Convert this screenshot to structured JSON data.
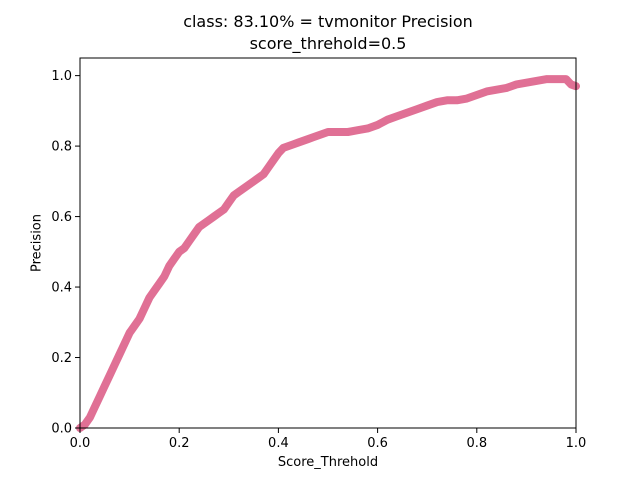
{
  "chart_data": {
    "type": "line",
    "title": "class: 83.10% = tvmonitor Precision",
    "subtitle": "score_threhold=0.5",
    "xlabel": "Score_Threhold",
    "ylabel": "Precision",
    "xlim": [
      0.0,
      1.0
    ],
    "ylim": [
      0.0,
      1.05
    ],
    "xticks": [
      "0.0",
      "0.2",
      "0.4",
      "0.6",
      "0.8",
      "1.0"
    ],
    "yticks": [
      "0.0",
      "0.2",
      "0.4",
      "0.6",
      "0.8",
      "1.0"
    ],
    "grid": false,
    "series": [
      {
        "color": "#e07095",
        "x": [
          0.0,
          0.01,
          0.02,
          0.03,
          0.04,
          0.05,
          0.06,
          0.07,
          0.08,
          0.09,
          0.1,
          0.11,
          0.12,
          0.13,
          0.14,
          0.15,
          0.16,
          0.17,
          0.18,
          0.19,
          0.2,
          0.21,
          0.22,
          0.23,
          0.24,
          0.25,
          0.26,
          0.27,
          0.28,
          0.29,
          0.3,
          0.31,
          0.32,
          0.33,
          0.34,
          0.35,
          0.36,
          0.37,
          0.38,
          0.39,
          0.4,
          0.41,
          0.42,
          0.43,
          0.44,
          0.45,
          0.46,
          0.47,
          0.48,
          0.49,
          0.5,
          0.52,
          0.54,
          0.56,
          0.58,
          0.6,
          0.62,
          0.64,
          0.66,
          0.68,
          0.7,
          0.72,
          0.74,
          0.76,
          0.78,
          0.8,
          0.82,
          0.84,
          0.86,
          0.88,
          0.9,
          0.92,
          0.94,
          0.96,
          0.98,
          0.99,
          1.0
        ],
        "y": [
          0.0,
          0.01,
          0.03,
          0.06,
          0.09,
          0.12,
          0.15,
          0.18,
          0.21,
          0.24,
          0.27,
          0.29,
          0.31,
          0.34,
          0.37,
          0.39,
          0.41,
          0.43,
          0.46,
          0.48,
          0.5,
          0.51,
          0.53,
          0.55,
          0.57,
          0.58,
          0.59,
          0.6,
          0.61,
          0.62,
          0.64,
          0.66,
          0.67,
          0.68,
          0.69,
          0.7,
          0.71,
          0.72,
          0.74,
          0.76,
          0.78,
          0.795,
          0.8,
          0.805,
          0.81,
          0.815,
          0.82,
          0.825,
          0.83,
          0.835,
          0.84,
          0.84,
          0.84,
          0.845,
          0.85,
          0.86,
          0.875,
          0.885,
          0.895,
          0.905,
          0.915,
          0.925,
          0.93,
          0.93,
          0.935,
          0.945,
          0.955,
          0.96,
          0.965,
          0.975,
          0.98,
          0.985,
          0.99,
          0.99,
          0.99,
          0.975,
          0.97
        ]
      }
    ]
  }
}
